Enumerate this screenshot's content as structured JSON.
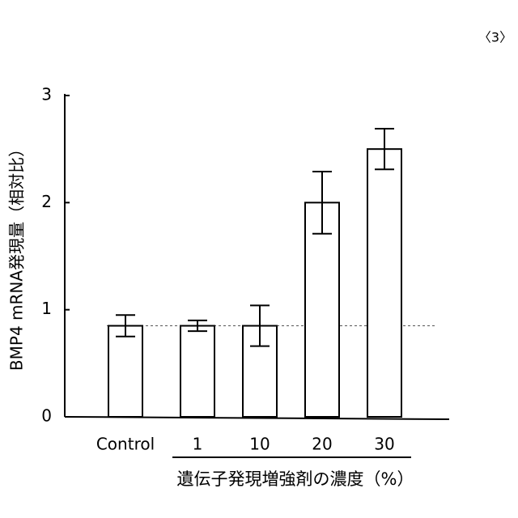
{
  "chart_data": {
    "type": "bar",
    "page_label": "〈3〉",
    "y_label": "BMP4 mRNA発現量（相対比）",
    "x_label": "遺伝子発現増強剤の濃度（%）",
    "categories": [
      "Control",
      "1",
      "10",
      "20",
      "30"
    ],
    "values": [
      0.85,
      0.85,
      0.85,
      2.0,
      2.5
    ],
    "errors": [
      0.1,
      0.05,
      0.19,
      0.29,
      0.19
    ],
    "reference_line": 0.85,
    "color": "#ffffff",
    "ylim": [
      0,
      3
    ],
    "yticks": [
      0,
      1,
      2,
      3
    ],
    "grid": false
  }
}
